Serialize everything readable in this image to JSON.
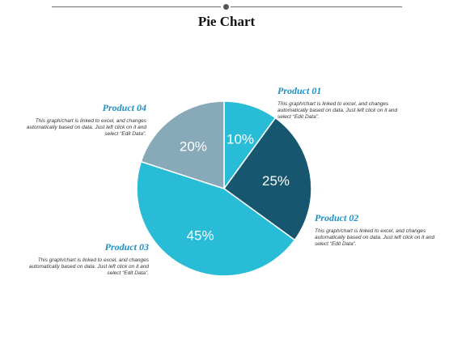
{
  "slide": {
    "title": "Pie Chart"
  },
  "chart_data": {
    "type": "pie",
    "title": "",
    "slices": [
      {
        "label": "Product 01",
        "value": 10,
        "display": "10%",
        "color": "#29bcd6"
      },
      {
        "label": "Product 02",
        "value": 25,
        "display": "25%",
        "color": "#16566e"
      },
      {
        "label": "Product 03",
        "value": 45,
        "display": "45%",
        "color": "#29bcd6"
      },
      {
        "label": "Product 04",
        "value": 20,
        "display": "20%",
        "color": "#88a9b8"
      }
    ],
    "start_angle_deg": 0,
    "direction": "clockwise"
  },
  "callouts": [
    {
      "heading": "Product 01",
      "body": "This graph/chart is linked to excel, and changes automatically based on data. Just left click on it and select “Edit Data”."
    },
    {
      "heading": "Product 02",
      "body": "This graph/chart is linked to excel, and changes automatically based on data. Just left click on it and select “Edit Data”."
    },
    {
      "heading": "Product 03",
      "body": "This graph/chart is linked to excel, and changes automatically based on data. Just left click on it and select “Edit Data”."
    },
    {
      "heading": "Product 04",
      "body": "This graph/chart is linked to excel, and changes automatically based on data. Just left click on it and select “Edit Data”."
    }
  ]
}
